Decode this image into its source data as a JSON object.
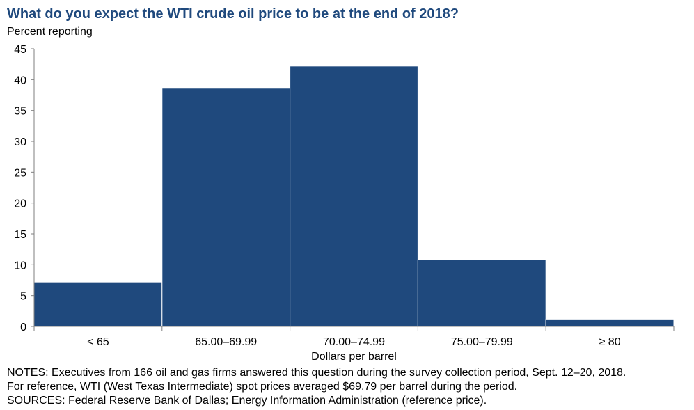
{
  "colors": {
    "bar": "#1f497d",
    "title": "#1f497d",
    "axis": "#7f7f7f"
  },
  "chart_data": {
    "type": "bar",
    "title": "What do you expect the WTI crude oil price to be at the end of 2018?",
    "ylabel": "Percent reporting",
    "xlabel": "Dollars per barrel",
    "categories": [
      "< 65",
      "65.00–69.99",
      "70.00–74.99",
      "75.00–79.99",
      "≥ 80"
    ],
    "values": [
      7.2,
      38.6,
      42.2,
      10.8,
      1.2
    ],
    "ylim": [
      0,
      45
    ],
    "yticks": [
      0,
      5,
      10,
      15,
      20,
      25,
      30,
      35,
      40,
      45
    ],
    "grid": false,
    "legend": "none"
  },
  "notes": {
    "line1": "NOTES: Executives from 166 oil and gas firms answered this question during the survey collection period, Sept. 12–20, 2018.",
    "line2": "For reference, WTI (West Texas Intermediate) spot prices averaged $69.79 per barrel during the period.",
    "line3": "SOURCES: Federal Reserve Bank of Dallas; Energy Information Administration (reference price)."
  }
}
